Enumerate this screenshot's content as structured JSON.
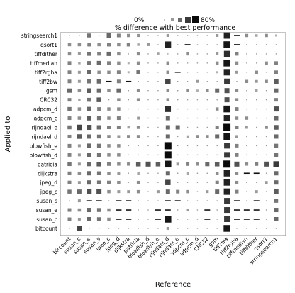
{
  "chart_data": {
    "type": "heatmap",
    "title": "% difference with best performance",
    "xlabel": "Reference",
    "ylabel": "Applied to",
    "legend": {
      "min_label": "0%",
      "max_label": "80%",
      "placement": "top"
    },
    "x_categories": [
      "bitcount",
      "susan_c",
      "susan_e",
      "susan_s",
      "jpeg_c",
      "jpeg_d",
      "dijkstra",
      "patricia",
      "blowfish_d",
      "blowfish_e",
      "rijndael_d",
      "rijndael_e",
      "adpcm_c",
      "adpcm_d",
      "CRC32",
      "gsm",
      "tiff2bw",
      "tiff2rgba",
      "tiffmedian",
      "tiffdither",
      "qsort1",
      "stringsearch1"
    ],
    "y_categories": [
      "stringsearch1",
      "qsort1",
      "tiffdither",
      "tiffmedian",
      "tiff2rgba",
      "tiff2bw",
      "gsm",
      "CRC32",
      "adpcm_d",
      "adpcm_c",
      "rijndael_e",
      "rijndael_d",
      "blowfish_e",
      "blowfish_d",
      "patricia",
      "dijkstra",
      "jpeg_d",
      "jpeg_c",
      "susan_s",
      "susan_e",
      "susan_c",
      "bitcount"
    ],
    "values": [
      [
        0,
        3,
        35,
        0,
        40,
        30,
        25,
        22,
        0,
        0,
        20,
        0,
        0,
        0,
        0,
        20,
        70,
        5,
        25,
        15,
        25,
        10
      ],
      [
        25,
        25,
        30,
        25,
        30,
        25,
        30,
        15,
        20,
        0,
        70,
        0,
        5,
        0,
        0,
        3,
        75,
        5,
        0,
        3,
        3,
        0
      ],
      [
        25,
        20,
        35,
        30,
        40,
        25,
        0,
        25,
        0,
        15,
        0,
        0,
        25,
        0,
        0,
        20,
        65,
        30,
        0,
        0,
        0,
        0
      ],
      [
        30,
        15,
        35,
        40,
        30,
        25,
        10,
        25,
        0,
        0,
        25,
        0,
        0,
        0,
        0,
        25,
        75,
        25,
        0,
        0,
        25,
        30
      ],
      [
        30,
        20,
        40,
        25,
        25,
        30,
        10,
        35,
        0,
        0,
        25,
        5,
        0,
        0,
        0,
        10,
        70,
        20,
        0,
        25,
        0,
        30
      ],
      [
        30,
        20,
        35,
        40,
        5,
        30,
        5,
        0,
        0,
        0,
        55,
        0,
        0,
        20,
        0,
        0,
        60,
        3,
        25,
        20,
        25,
        45
      ],
      [
        40,
        25,
        45,
        40,
        25,
        40,
        0,
        25,
        0,
        0,
        25,
        0,
        25,
        10,
        25,
        40,
        50,
        25,
        0,
        15,
        0,
        40
      ],
      [
        30,
        15,
        35,
        45,
        0,
        25,
        0,
        25,
        0,
        0,
        25,
        0,
        0,
        0,
        0,
        0,
        50,
        25,
        0,
        0,
        0,
        30
      ],
      [
        35,
        25,
        40,
        30,
        25,
        25,
        0,
        0,
        0,
        0,
        65,
        0,
        0,
        0,
        0,
        25,
        75,
        30,
        0,
        0,
        0,
        50
      ],
      [
        30,
        25,
        45,
        35,
        25,
        30,
        0,
        20,
        0,
        0,
        40,
        0,
        0,
        0,
        0,
        0,
        70,
        25,
        25,
        0,
        0,
        40
      ],
      [
        35,
        55,
        50,
        40,
        30,
        30,
        15,
        25,
        0,
        0,
        40,
        40,
        0,
        0,
        0,
        30,
        80,
        30,
        20,
        0,
        25,
        45
      ],
      [
        30,
        45,
        40,
        35,
        25,
        20,
        25,
        25,
        0,
        0,
        40,
        0,
        15,
        25,
        25,
        40,
        75,
        20,
        0,
        0,
        0,
        40
      ],
      [
        30,
        20,
        40,
        35,
        25,
        25,
        0,
        0,
        0,
        0,
        80,
        0,
        0,
        0,
        0,
        0,
        60,
        30,
        0,
        0,
        0,
        35
      ],
      [
        30,
        20,
        40,
        35,
        25,
        25,
        0,
        0,
        0,
        0,
        80,
        0,
        0,
        0,
        0,
        0,
        60,
        30,
        0,
        0,
        0,
        35
      ],
      [
        35,
        20,
        40,
        45,
        30,
        25,
        25,
        45,
        50,
        45,
        75,
        20,
        30,
        25,
        40,
        45,
        80,
        50,
        25,
        30,
        50,
        60
      ],
      [
        30,
        25,
        40,
        35,
        25,
        20,
        0,
        15,
        0,
        0,
        40,
        0,
        15,
        0,
        0,
        25,
        70,
        25,
        5,
        5,
        0,
        40
      ],
      [
        30,
        20,
        40,
        35,
        30,
        25,
        0,
        25,
        0,
        0,
        55,
        0,
        0,
        0,
        0,
        30,
        70,
        25,
        0,
        0,
        20,
        40
      ],
      [
        35,
        40,
        50,
        50,
        25,
        20,
        20,
        25,
        0,
        20,
        40,
        30,
        25,
        0,
        20,
        40,
        70,
        30,
        0,
        20,
        0,
        45
      ],
      [
        0,
        20,
        5,
        5,
        0,
        5,
        5,
        0,
        0,
        0,
        5,
        5,
        0,
        0,
        0,
        0,
        60,
        5,
        0,
        5,
        0,
        35
      ],
      [
        30,
        25,
        40,
        35,
        25,
        5,
        5,
        0,
        0,
        5,
        5,
        0,
        20,
        0,
        5,
        0,
        60,
        5,
        5,
        5,
        0,
        40
      ],
      [
        30,
        20,
        40,
        35,
        25,
        5,
        5,
        0,
        0,
        5,
        75,
        0,
        0,
        0,
        5,
        0,
        60,
        5,
        5,
        5,
        0,
        40
      ],
      [
        0,
        55,
        0,
        0,
        0,
        0,
        0,
        0,
        0,
        0,
        20,
        0,
        0,
        0,
        0,
        0,
        75,
        0,
        0,
        0,
        0,
        0
      ]
    ]
  }
}
